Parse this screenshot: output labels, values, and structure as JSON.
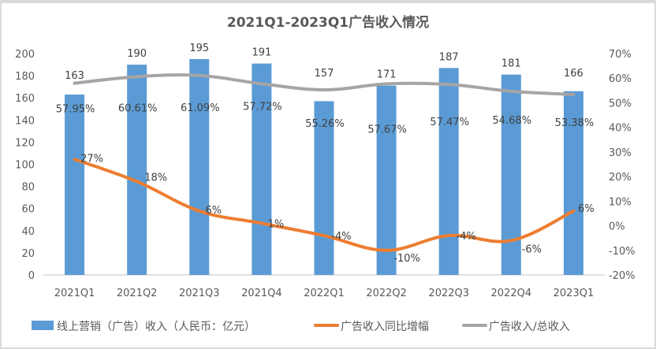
{
  "chart_data": {
    "type": "bar",
    "title": "2021Q1-2023Q1广告收入情况",
    "categories": [
      "2021Q1",
      "2021Q2",
      "2021Q3",
      "2021Q4",
      "2022Q1",
      "2022Q2",
      "2022Q3",
      "2022Q4",
      "2023Q1"
    ],
    "series": [
      {
        "name": "线上营销（广告）收入（人民币：亿元）",
        "type": "bar",
        "axis": "left",
        "color": "#5b9bd5",
        "values": [
          163,
          190,
          195,
          191,
          157,
          171,
          187,
          181,
          166
        ],
        "labels": [
          "163",
          "190",
          "195",
          "191",
          "157",
          "171",
          "187",
          "181",
          "166"
        ]
      },
      {
        "name": "广告收入同比增幅",
        "type": "line",
        "axis": "right",
        "color": "#ed7d31",
        "values": [
          27,
          18,
          6,
          1,
          -4,
          -10,
          -4,
          -6,
          6
        ],
        "labels": [
          "27%",
          "18%",
          "6%",
          "1%",
          "-4%",
          "-10%",
          "-4%",
          "-6%",
          "6%"
        ]
      },
      {
        "name": "广告收入/总收入",
        "type": "line",
        "axis": "right",
        "color": "#a5a5a5",
        "values": [
          57.95,
          60.61,
          61.09,
          57.72,
          55.26,
          57.67,
          57.47,
          54.68,
          53.38
        ],
        "labels": [
          "57.95%",
          "60.61%",
          "61.09%",
          "57.72%",
          "55.26%",
          "57.67%",
          "57.47%",
          "54.68%",
          "53.38%"
        ]
      }
    ],
    "left_axis": {
      "ylim": [
        0,
        200
      ],
      "ticks": [
        "0",
        "20",
        "40",
        "60",
        "80",
        "100",
        "120",
        "140",
        "160",
        "180",
        "200"
      ]
    },
    "right_axis": {
      "ylim": [
        -20,
        70
      ],
      "ticks": [
        "-20%",
        "-10%",
        "0%",
        "10%",
        "20%",
        "30%",
        "40%",
        "50%",
        "60%",
        "70%"
      ]
    },
    "grid": false,
    "legend": "bottom",
    "xlabel": "",
    "ylabel": ""
  }
}
